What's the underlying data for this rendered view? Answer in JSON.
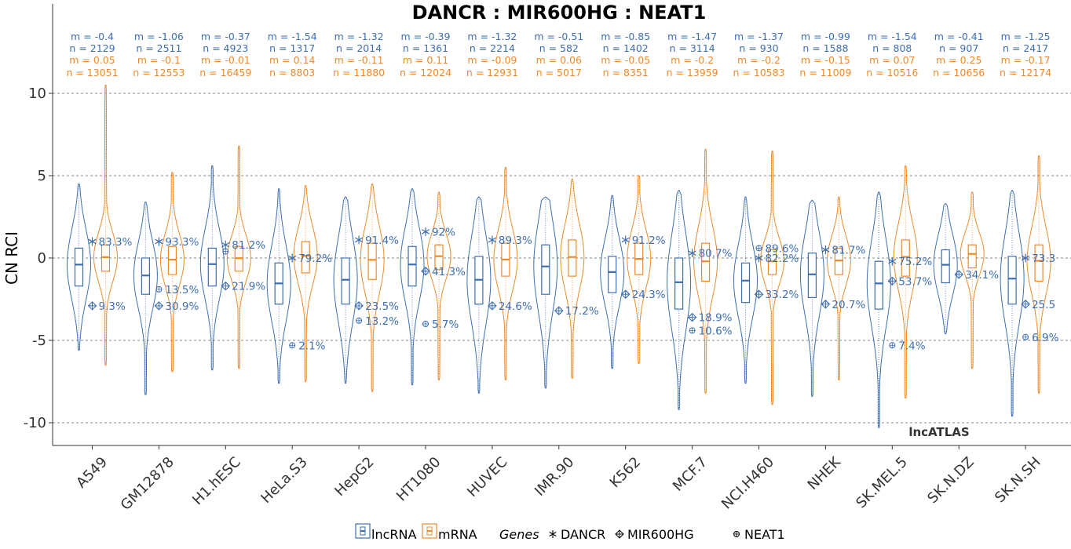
{
  "chart_data": {
    "type": "violin",
    "title": "DANCR : MIR600HG : NEAT1",
    "ylabel": "CN RCI",
    "ylim": [
      -11,
      13.5
    ],
    "yticks": [
      10,
      5,
      0,
      -5,
      -10
    ],
    "grid": true,
    "watermark": "lncATLAS",
    "colors": {
      "lncRNA": "#3e6eb0",
      "mRNA": "#ef8a2b"
    },
    "categories": [
      "A549",
      "GM12878",
      "H1.hESC",
      "HeLa.S3",
      "HepG2",
      "HT1080",
      "HUVEC",
      "IMR.90",
      "K562",
      "MCF.7",
      "NCI.H460",
      "NHEK",
      "SK.MEL.5",
      "SK.N.DZ",
      "SK.N.SH"
    ],
    "stats": {
      "lncRNA_m": [
        "m = -0.4",
        "m = -1.06",
        "m = -0.37",
        "m = -1.54",
        "m = -1.32",
        "m = -0.39",
        "m = -1.32",
        "m = -0.51",
        "m = -0.85",
        "m = -1.47",
        "m = -1.37",
        "m = -0.99",
        "m = -1.54",
        "m = -0.41",
        "m = -1.25"
      ],
      "lncRNA_n": [
        "n = 2129",
        "n = 2511",
        "n = 4923",
        "n = 1317",
        "n = 2014",
        "n = 1361",
        "n = 2214",
        "n = 582",
        "n = 1402",
        "n = 3114",
        "n = 930",
        "n = 1588",
        "n = 808",
        "n = 907",
        "n = 2417"
      ],
      "mRNA_m": [
        "m = 0.05",
        "m = -0.1",
        "m = -0.01",
        "m = 0.14",
        "m = -0.11",
        "m = 0.11",
        "m = -0.09",
        "m = 0.06",
        "m = -0.05",
        "m = -0.2",
        "m = -0.2",
        "m = -0.15",
        "m = 0.07",
        "m = 0.25",
        "m = -0.17"
      ],
      "mRNA_n": [
        "n = 13051",
        "n = 12553",
        "n = 16459",
        "n = 8803",
        "n = 11880",
        "n = 12024",
        "n = 12931",
        "n = 5017",
        "n = 8351",
        "n = 13959",
        "n = 10583",
        "n = 11009",
        "n = 10516",
        "n = 10656",
        "n = 12174"
      ]
    },
    "series": [
      {
        "name": "lncRNA",
        "median": [
          -0.4,
          -1.06,
          -0.37,
          -1.54,
          -1.32,
          -0.39,
          -1.32,
          -0.51,
          -0.85,
          -1.47,
          -1.37,
          -0.99,
          -1.54,
          -0.41,
          -1.25
        ],
        "q1": [
          -1.7,
          -2.2,
          -1.7,
          -2.8,
          -2.8,
          -1.7,
          -2.8,
          -2.2,
          -2.1,
          -3.1,
          -2.7,
          -2.4,
          -3.1,
          -1.5,
          -2.8
        ],
        "q3": [
          0.6,
          0.0,
          0.6,
          -0.3,
          0.0,
          0.7,
          0.1,
          0.8,
          0.1,
          0.0,
          -0.3,
          0.3,
          -0.2,
          0.5,
          0.1
        ],
        "min": [
          -5.6,
          -8.3,
          -6.8,
          -7.6,
          -7.6,
          -7.7,
          -8.2,
          -7.9,
          -6.7,
          -9.2,
          -7.6,
          -8.4,
          -10.3,
          -4.6,
          -9.6
        ],
        "max": [
          4.5,
          3.4,
          5.6,
          4.2,
          3.7,
          4.2,
          3.7,
          3.7,
          3.8,
          4.1,
          3.7,
          3.5,
          4.0,
          3.3,
          4.1
        ]
      },
      {
        "name": "mRNA",
        "median": [
          0.05,
          -0.1,
          -0.01,
          0.14,
          -0.11,
          0.11,
          -0.09,
          0.06,
          -0.05,
          -0.2,
          -0.2,
          -0.15,
          0.07,
          0.25,
          -0.17
        ],
        "q1": [
          -0.8,
          -1.0,
          -0.8,
          -0.9,
          -1.3,
          -0.7,
          -1.1,
          -1.1,
          -1.0,
          -1.4,
          -1.0,
          -1.0,
          -1.1,
          -0.6,
          -1.4
        ],
        "q3": [
          0.8,
          0.7,
          0.7,
          1.0,
          0.9,
          0.8,
          0.9,
          1.1,
          0.9,
          0.9,
          0.5,
          0.6,
          1.1,
          0.8,
          0.8
        ],
        "min": [
          -6.5,
          -6.9,
          -6.7,
          -7.5,
          -8.1,
          -7.4,
          -7.4,
          -7.3,
          -6.4,
          -8.2,
          -8.9,
          -7.4,
          -8.5,
          -6.7,
          -8.2
        ],
        "max": [
          10.5,
          5.2,
          6.8,
          4.4,
          4.5,
          4.0,
          5.5,
          4.8,
          5.0,
          6.6,
          6.5,
          3.7,
          5.6,
          4.0,
          6.2
        ]
      }
    ],
    "genes": [
      {
        "name": "DANCR",
        "symbol": "*",
        "y": [
          1.0,
          1.0,
          0.8,
          0.0,
          1.1,
          1.6,
          1.1,
          null,
          1.1,
          0.3,
          0.0,
          0.5,
          -0.2,
          null,
          0.0
        ],
        "pct": [
          "83.3%",
          "93.3%",
          "81.2%",
          "79.2%",
          "91.4%",
          "92%",
          "89.3%",
          null,
          "91.2%",
          "80.7%",
          "82.2%",
          "81.7%",
          "75.2%",
          null,
          "73.3"
        ]
      },
      {
        "name": "MIR600HG",
        "symbol": "diamond",
        "y": [
          -2.9,
          -2.9,
          -1.7,
          null,
          -2.9,
          -0.8,
          -2.9,
          -3.2,
          -2.2,
          -3.6,
          -2.2,
          -2.8,
          -1.4,
          -1.0,
          -2.8
        ],
        "pct": [
          "9.3%",
          "30.9%",
          "21.9%",
          null,
          "23.5%",
          "41.3%",
          "24.6%",
          "17.2%",
          "24.3%",
          "18.9%",
          "33.2%",
          "20.7%",
          "53.7%",
          "34.1%",
          "25.5"
        ]
      },
      {
        "name": "NEAT1",
        "symbol": "circle",
        "y": [
          null,
          -1.9,
          0.4,
          -5.3,
          -3.8,
          -4.0,
          null,
          null,
          null,
          -4.4,
          0.6,
          null,
          -5.3,
          null,
          -4.8
        ],
        "pct": [
          null,
          "13.5%",
          null,
          "2.1%",
          "13.2%",
          "5.7%",
          null,
          null,
          null,
          "10.6%",
          "89.6%",
          null,
          "7.4%",
          null,
          "6.9%"
        ]
      }
    ],
    "legend": {
      "position": "bottom",
      "items": [
        "lncRNA",
        "mRNA"
      ],
      "genes_label": "Genes",
      "gene_items": [
        "DANCR",
        "MIR600HG",
        "NEAT1"
      ]
    }
  }
}
